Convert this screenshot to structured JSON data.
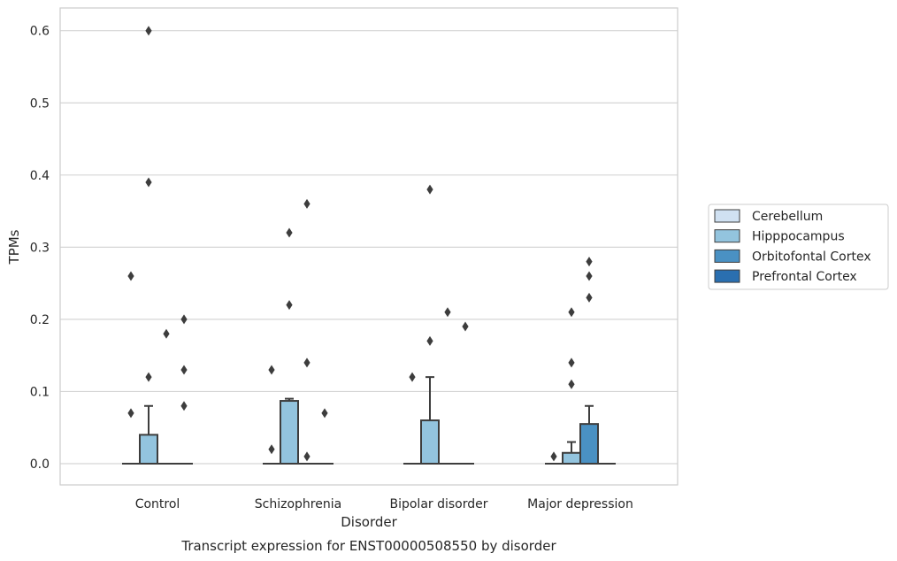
{
  "chart_data": {
    "type": "box",
    "title": "Transcript expression for ENST00000508550 by disorder",
    "xlabel": "Disorder",
    "ylabel": "TPMs",
    "ylim": [
      -0.03,
      0.63
    ],
    "yticks": [
      "0.0",
      "0.1",
      "0.2",
      "0.3",
      "0.4",
      "0.5",
      "0.6"
    ],
    "grid": true,
    "legend_position": "right",
    "categories": [
      "Control",
      "Schizophrenia",
      "Bipolar disorder",
      "Major depression"
    ],
    "series": [
      {
        "name": "Cerebellum",
        "color": "#d0e1f2"
      },
      {
        "name": "Hipppocampus",
        "color": "#93c4de"
      },
      {
        "name": "Orbitofontal Cortex",
        "color": "#4a91c3"
      },
      {
        "name": "Prefrontal Cortex",
        "color": "#2a6fb0"
      }
    ],
    "boxes": [
      {
        "category": "Control",
        "series": "Cerebellum",
        "q1": 0,
        "median": 0,
        "q3": 0,
        "whisker_low": 0,
        "whisker_high": 0,
        "outliers": [
          0.26,
          0.07
        ]
      },
      {
        "category": "Control",
        "series": "Hipppocampus",
        "q1": 0,
        "median": 0,
        "q3": 0.04,
        "whisker_low": 0,
        "whisker_high": 0.08,
        "outliers": [
          0.6,
          0.39,
          0.12
        ]
      },
      {
        "category": "Control",
        "series": "Orbitofontal Cortex",
        "q1": 0,
        "median": 0,
        "q3": 0,
        "whisker_low": 0,
        "whisker_high": 0,
        "outliers": [
          0.18
        ]
      },
      {
        "category": "Control",
        "series": "Prefrontal Cortex",
        "q1": 0,
        "median": 0,
        "q3": 0,
        "whisker_low": 0,
        "whisker_high": 0,
        "outliers": [
          0.2,
          0.13,
          0.08
        ]
      },
      {
        "category": "Schizophrenia",
        "series": "Cerebellum",
        "q1": 0,
        "median": 0,
        "q3": 0,
        "whisker_low": 0,
        "whisker_high": 0,
        "outliers": [
          0.13,
          0.02
        ]
      },
      {
        "category": "Schizophrenia",
        "series": "Hipppocampus",
        "q1": 0,
        "median": 0,
        "q3": 0.087,
        "whisker_low": 0,
        "whisker_high": 0.09,
        "outliers": [
          0.32,
          0.22
        ]
      },
      {
        "category": "Schizophrenia",
        "series": "Orbitofontal Cortex",
        "q1": 0,
        "median": 0,
        "q3": 0,
        "whisker_low": 0,
        "whisker_high": 0,
        "outliers": [
          0.36,
          0.14,
          0.01
        ]
      },
      {
        "category": "Schizophrenia",
        "series": "Prefrontal Cortex",
        "q1": 0,
        "median": 0,
        "q3": 0,
        "whisker_low": 0,
        "whisker_high": 0,
        "outliers": [
          0.07
        ]
      },
      {
        "category": "Bipolar disorder",
        "series": "Cerebellum",
        "q1": 0,
        "median": 0,
        "q3": 0,
        "whisker_low": 0,
        "whisker_high": 0,
        "outliers": [
          0.12
        ]
      },
      {
        "category": "Bipolar disorder",
        "series": "Hipppocampus",
        "q1": 0,
        "median": 0,
        "q3": 0.06,
        "whisker_low": 0,
        "whisker_high": 0.12,
        "outliers": [
          0.38,
          0.17
        ]
      },
      {
        "category": "Bipolar disorder",
        "series": "Orbitofontal Cortex",
        "q1": 0,
        "median": 0,
        "q3": 0,
        "whisker_low": 0,
        "whisker_high": 0,
        "outliers": [
          0.21
        ]
      },
      {
        "category": "Bipolar disorder",
        "series": "Prefrontal Cortex",
        "q1": 0,
        "median": 0,
        "q3": 0,
        "whisker_low": 0,
        "whisker_high": 0,
        "outliers": [
          0.19
        ]
      },
      {
        "category": "Major depression",
        "series": "Cerebellum",
        "q1": 0,
        "median": 0,
        "q3": 0,
        "whisker_low": 0,
        "whisker_high": 0,
        "outliers": [
          0.01
        ]
      },
      {
        "category": "Major depression",
        "series": "Hipppocampus",
        "q1": 0,
        "median": 0,
        "q3": 0.015,
        "whisker_low": 0,
        "whisker_high": 0.03,
        "outliers": [
          0.21,
          0.14,
          0.11
        ]
      },
      {
        "category": "Major depression",
        "series": "Orbitofontal Cortex",
        "q1": 0,
        "median": 0,
        "q3": 0.055,
        "whisker_low": 0,
        "whisker_high": 0.08,
        "outliers": [
          0.28,
          0.26,
          0.23
        ]
      },
      {
        "category": "Major depression",
        "series": "Prefrontal Cortex",
        "q1": 0,
        "median": 0,
        "q3": 0,
        "whisker_low": 0,
        "whisker_high": 0,
        "outliers": []
      }
    ]
  }
}
